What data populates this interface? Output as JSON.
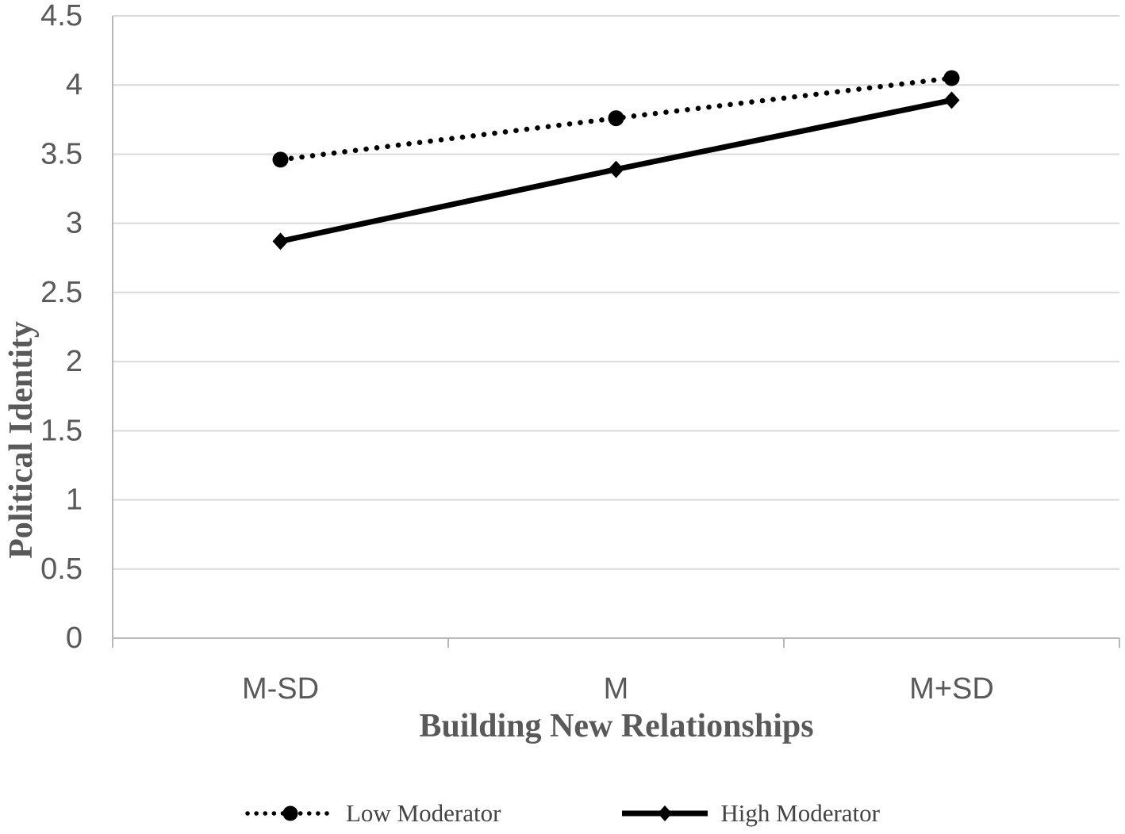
{
  "chart_data": {
    "type": "line",
    "categories": [
      "M-SD",
      "M",
      "M+SD"
    ],
    "series": [
      {
        "name": "Low Moderator",
        "values": [
          3.46,
          3.76,
          4.05
        ],
        "line_style": "dotted",
        "marker": "circle"
      },
      {
        "name": "High Moderator",
        "values": [
          2.87,
          3.39,
          3.89
        ],
        "line_style": "solid",
        "marker": "diamond"
      }
    ],
    "title": "",
    "xlabel": "Building New Relationships",
    "ylabel": "Political Identity",
    "ylim": [
      0,
      4.5
    ],
    "ytick_step": 0.5,
    "grid": true,
    "legend_position": "bottom"
  },
  "colors": {
    "series": "#000000",
    "gridline": "#d9d9d9",
    "axis_line": "#b7b7b7",
    "tick_label": "#595959",
    "axis_title": "#595959",
    "legend_text": "#444444",
    "background": "#ffffff"
  }
}
